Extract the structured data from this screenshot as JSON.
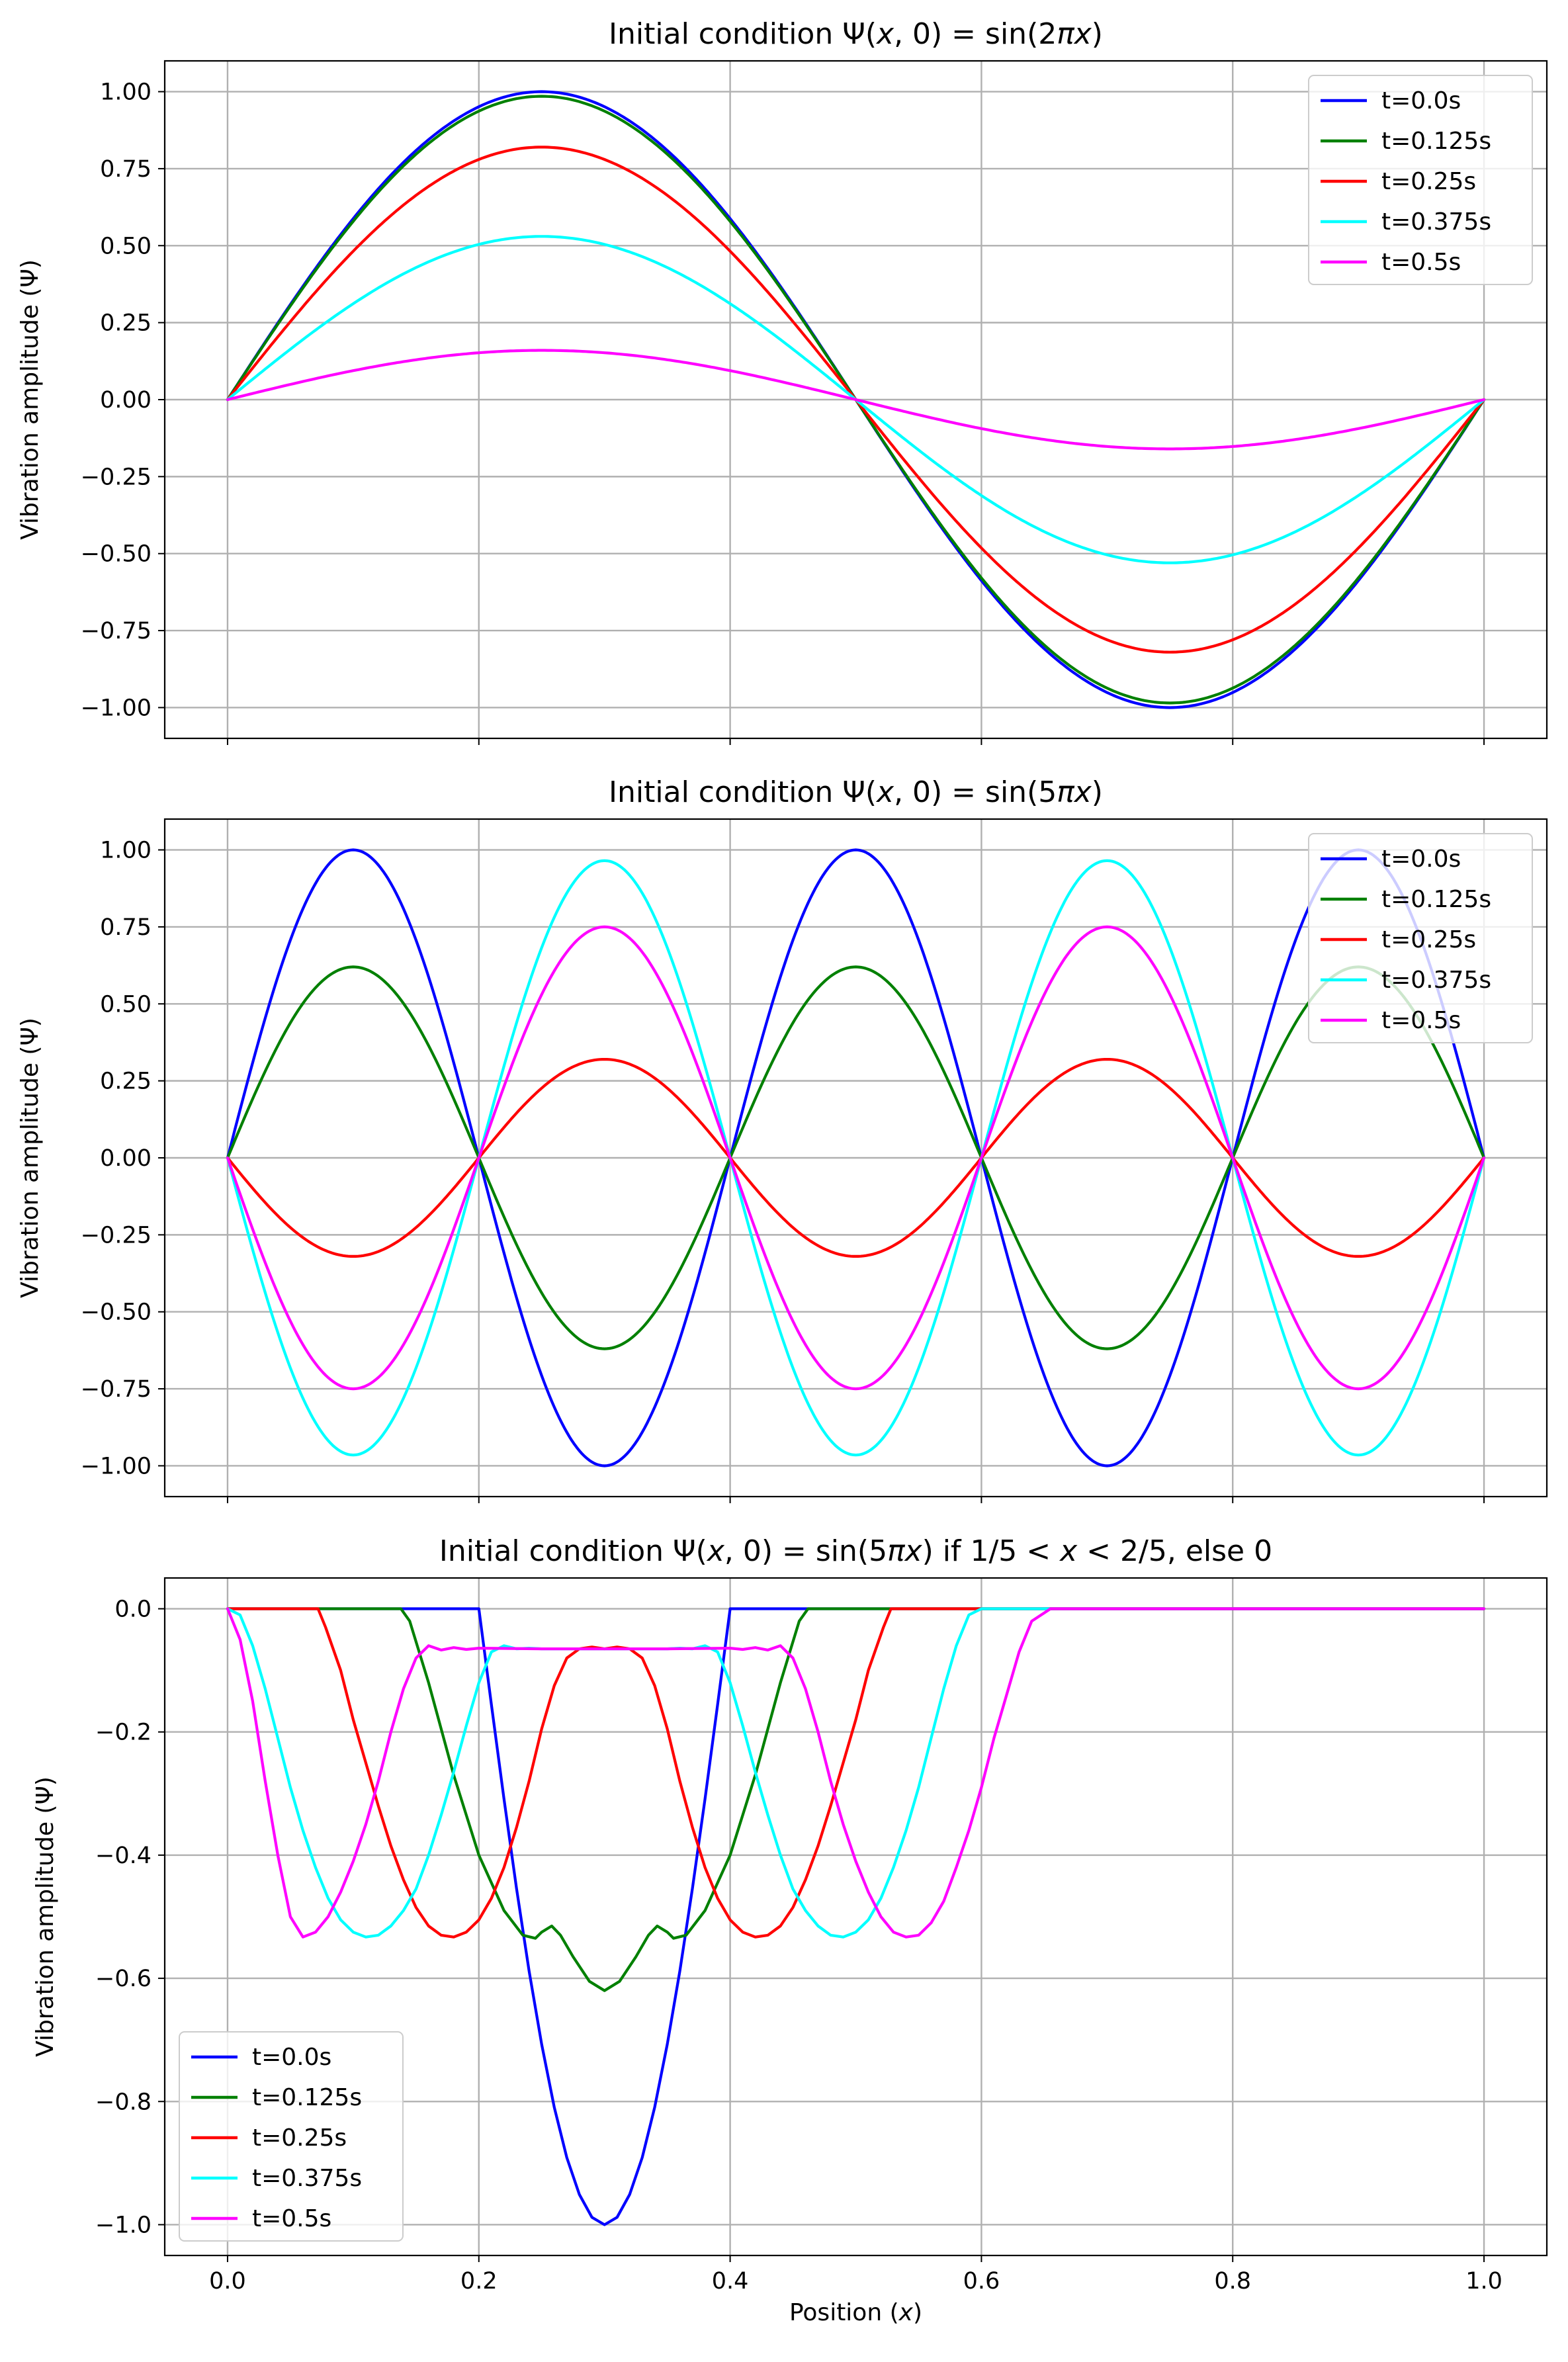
{
  "chart_data": [
    {
      "type": "line",
      "title": "Initial condition Ψ(x, 0) = sin(2πx)",
      "title_parts": {
        "pre": "Initial condition Ψ(",
        "x1": "x",
        "mid": ", 0) = sin(2",
        "pi": "π",
        "x2": "x",
        "post": ")"
      },
      "xlabel": "",
      "ylabel": "Vibration amplitude (Ψ)",
      "xlim": [
        -0.05,
        1.05
      ],
      "ylim": [
        -1.1,
        1.1
      ],
      "xticks": [
        0.0,
        0.2,
        0.4,
        0.6,
        0.8,
        1.0
      ],
      "xtick_labels_visible": false,
      "yticks": [
        1.0,
        0.75,
        0.5,
        0.25,
        0.0,
        -0.25,
        -0.5,
        -0.75,
        -1.0
      ],
      "ytick_labels": [
        "1.00",
        "0.75",
        "0.50",
        "0.25",
        "0.00",
        "−0.25",
        "−0.50",
        "−0.75",
        "−1.00"
      ],
      "grid": true,
      "legend": "top-right",
      "formula": "A * sin(2*pi*x), x in [0, 1]",
      "series": [
        {
          "name": "t=0.0s",
          "color": "#0000ff",
          "amplitude": 1.0
        },
        {
          "name": "t=0.125s",
          "color": "#008000",
          "amplitude": 0.985
        },
        {
          "name": "t=0.25s",
          "color": "#ff0000",
          "amplitude": 0.82
        },
        {
          "name": "t=0.375s",
          "color": "#00ffff",
          "amplitude": 0.53
        },
        {
          "name": "t=0.5s",
          "color": "#ff00ff",
          "amplitude": 0.16
        }
      ]
    },
    {
      "type": "line",
      "title": "Initial condition Ψ(x, 0) = sin(5πx)",
      "title_parts": {
        "pre": "Initial condition Ψ(",
        "x1": "x",
        "mid": ", 0) = sin(5",
        "pi": "π",
        "x2": "x",
        "post": ")"
      },
      "xlabel": "",
      "ylabel": "Vibration amplitude (Ψ)",
      "xlim": [
        -0.05,
        1.05
      ],
      "ylim": [
        -1.1,
        1.1
      ],
      "xticks": [
        0.0,
        0.2,
        0.4,
        0.6,
        0.8,
        1.0
      ],
      "xtick_labels_visible": false,
      "yticks": [
        1.0,
        0.75,
        0.5,
        0.25,
        0.0,
        -0.25,
        -0.5,
        -0.75,
        -1.0
      ],
      "ytick_labels": [
        "1.00",
        "0.75",
        "0.50",
        "0.25",
        "0.00",
        "−0.25",
        "−0.50",
        "−0.75",
        "−1.00"
      ],
      "grid": true,
      "legend": "top-right",
      "formula": "A * |sin(5*pi*x)| alternating sign per half-wave, x in [0, 1]",
      "series": [
        {
          "name": "t=0.0s",
          "color": "#0000ff",
          "amplitude": 1.0
        },
        {
          "name": "t=0.125s",
          "color": "#008000",
          "amplitude": 0.62
        },
        {
          "name": "t=0.25s",
          "color": "#ff0000",
          "amplitude": -0.32
        },
        {
          "name": "t=0.375s",
          "color": "#00ffff",
          "amplitude": -0.965
        },
        {
          "name": "t=0.5s",
          "color": "#ff00ff",
          "amplitude": -0.75
        }
      ]
    },
    {
      "type": "line",
      "title": "Initial condition Ψ(x, 0) = sin(5πx) if 1/5 < x < 2/5, else 0",
      "title_parts": {
        "pre": "Initial condition Ψ(",
        "x1": "x",
        "mid": ", 0) = sin(5",
        "pi": "π",
        "x2": "x",
        "post": ") if 1/5 < ",
        "x3": "x",
        "post2": " < 2/5, else 0"
      },
      "xlabel": "Position (x)",
      "xlabel_parts": {
        "pre": "Position (",
        "x": "x",
        "post": ")"
      },
      "ylabel": "Vibration amplitude (Ψ)",
      "xlim": [
        -0.05,
        1.05
      ],
      "ylim": [
        -1.05,
        0.05
      ],
      "xticks": [
        0.0,
        0.2,
        0.4,
        0.6,
        0.8,
        1.0
      ],
      "xtick_labels": [
        "0.0",
        "0.2",
        "0.4",
        "0.6",
        "0.8",
        "1.0"
      ],
      "xtick_labels_visible": true,
      "yticks": [
        0.0,
        -0.2,
        -0.4,
        -0.6,
        -0.8,
        -1.0
      ],
      "ytick_labels": [
        "0.0",
        "−0.2",
        "−0.4",
        "−0.6",
        "−0.8",
        "−1.0"
      ],
      "grid": true,
      "legend": "bottom-left",
      "series": [
        {
          "name": "t=0.0s",
          "color": "#0000ff",
          "points": [
            [
              0.0,
              0.0
            ],
            [
              0.2,
              0.0
            ],
            [
              0.21,
              -0.156
            ],
            [
              0.22,
              -0.309
            ],
            [
              0.23,
              -0.454
            ],
            [
              0.24,
              -0.588
            ],
            [
              0.25,
              -0.707
            ],
            [
              0.26,
              -0.809
            ],
            [
              0.27,
              -0.891
            ],
            [
              0.28,
              -0.951
            ],
            [
              0.29,
              -0.988
            ],
            [
              0.3,
              -1.0
            ],
            [
              0.31,
              -0.988
            ],
            [
              0.32,
              -0.951
            ],
            [
              0.33,
              -0.891
            ],
            [
              0.34,
              -0.809
            ],
            [
              0.35,
              -0.707
            ],
            [
              0.36,
              -0.588
            ],
            [
              0.37,
              -0.454
            ],
            [
              0.38,
              -0.309
            ],
            [
              0.39,
              -0.156
            ],
            [
              0.4,
              0.0
            ],
            [
              1.0,
              0.0
            ]
          ]
        },
        {
          "name": "t=0.125s",
          "color": "#008000",
          "points": [
            [
              0.0,
              0.0
            ],
            [
              0.138,
              0.0
            ],
            [
              0.145,
              -0.02
            ],
            [
              0.16,
              -0.12
            ],
            [
              0.18,
              -0.27
            ],
            [
              0.2,
              -0.4
            ],
            [
              0.22,
              -0.49
            ],
            [
              0.235,
              -0.53
            ],
            [
              0.245,
              -0.535
            ],
            [
              0.25,
              -0.525
            ],
            [
              0.258,
              -0.515
            ],
            [
              0.265,
              -0.53
            ],
            [
              0.275,
              -0.565
            ],
            [
              0.288,
              -0.605
            ],
            [
              0.3,
              -0.62
            ],
            [
              0.312,
              -0.605
            ],
            [
              0.325,
              -0.565
            ],
            [
              0.335,
              -0.53
            ],
            [
              0.342,
              -0.515
            ],
            [
              0.35,
              -0.525
            ],
            [
              0.355,
              -0.535
            ],
            [
              0.365,
              -0.53
            ],
            [
              0.38,
              -0.49
            ],
            [
              0.4,
              -0.4
            ],
            [
              0.42,
              -0.27
            ],
            [
              0.44,
              -0.12
            ],
            [
              0.455,
              -0.02
            ],
            [
              0.462,
              0.0
            ],
            [
              1.0,
              0.0
            ]
          ]
        },
        {
          "name": "t=0.25s",
          "color": "#ff0000",
          "points": [
            [
              0.0,
              0.0
            ],
            [
              0.072,
              0.0
            ],
            [
              0.078,
              -0.03
            ],
            [
              0.09,
              -0.1
            ],
            [
              0.1,
              -0.18
            ],
            [
              0.11,
              -0.25
            ],
            [
              0.12,
              -0.32
            ],
            [
              0.13,
              -0.385
            ],
            [
              0.14,
              -0.44
            ],
            [
              0.15,
              -0.485
            ],
            [
              0.16,
              -0.515
            ],
            [
              0.17,
              -0.53
            ],
            [
              0.18,
              -0.533
            ],
            [
              0.19,
              -0.525
            ],
            [
              0.2,
              -0.505
            ],
            [
              0.21,
              -0.47
            ],
            [
              0.22,
              -0.42
            ],
            [
              0.23,
              -0.355
            ],
            [
              0.24,
              -0.28
            ],
            [
              0.25,
              -0.195
            ],
            [
              0.26,
              -0.125
            ],
            [
              0.27,
              -0.08
            ],
            [
              0.28,
              -0.065
            ],
            [
              0.29,
              -0.062
            ],
            [
              0.3,
              -0.065
            ],
            [
              0.31,
              -0.062
            ],
            [
              0.32,
              -0.065
            ],
            [
              0.33,
              -0.08
            ],
            [
              0.34,
              -0.125
            ],
            [
              0.35,
              -0.195
            ],
            [
              0.36,
              -0.28
            ],
            [
              0.37,
              -0.355
            ],
            [
              0.38,
              -0.42
            ],
            [
              0.39,
              -0.47
            ],
            [
              0.4,
              -0.505
            ],
            [
              0.41,
              -0.525
            ],
            [
              0.42,
              -0.533
            ],
            [
              0.43,
              -0.53
            ],
            [
              0.44,
              -0.515
            ],
            [
              0.45,
              -0.485
            ],
            [
              0.46,
              -0.44
            ],
            [
              0.47,
              -0.385
            ],
            [
              0.48,
              -0.32
            ],
            [
              0.49,
              -0.25
            ],
            [
              0.5,
              -0.18
            ],
            [
              0.51,
              -0.1
            ],
            [
              0.522,
              -0.03
            ],
            [
              0.528,
              0.0
            ],
            [
              1.0,
              0.0
            ]
          ]
        },
        {
          "name": "t=0.375s",
          "color": "#00ffff",
          "points": [
            [
              0.0,
              0.0
            ],
            [
              0.01,
              -0.01
            ],
            [
              0.02,
              -0.06
            ],
            [
              0.03,
              -0.13
            ],
            [
              0.04,
              -0.21
            ],
            [
              0.05,
              -0.29
            ],
            [
              0.06,
              -0.36
            ],
            [
              0.07,
              -0.42
            ],
            [
              0.08,
              -0.47
            ],
            [
              0.09,
              -0.505
            ],
            [
              0.1,
              -0.525
            ],
            [
              0.11,
              -0.533
            ],
            [
              0.12,
              -0.53
            ],
            [
              0.13,
              -0.515
            ],
            [
              0.14,
              -0.49
            ],
            [
              0.15,
              -0.455
            ],
            [
              0.16,
              -0.4
            ],
            [
              0.17,
              -0.335
            ],
            [
              0.18,
              -0.265
            ],
            [
              0.19,
              -0.19
            ],
            [
              0.2,
              -0.12
            ],
            [
              0.21,
              -0.07
            ],
            [
              0.22,
              -0.06
            ],
            [
              0.23,
              -0.065
            ],
            [
              0.24,
              -0.064
            ],
            [
              0.25,
              -0.065
            ],
            [
              0.3,
              -0.065
            ],
            [
              0.35,
              -0.065
            ],
            [
              0.36,
              -0.064
            ],
            [
              0.37,
              -0.065
            ],
            [
              0.38,
              -0.06
            ],
            [
              0.39,
              -0.07
            ],
            [
              0.4,
              -0.12
            ],
            [
              0.41,
              -0.19
            ],
            [
              0.42,
              -0.265
            ],
            [
              0.43,
              -0.335
            ],
            [
              0.44,
              -0.4
            ],
            [
              0.45,
              -0.455
            ],
            [
              0.46,
              -0.49
            ],
            [
              0.47,
              -0.515
            ],
            [
              0.48,
              -0.53
            ],
            [
              0.49,
              -0.533
            ],
            [
              0.5,
              -0.525
            ],
            [
              0.51,
              -0.505
            ],
            [
              0.52,
              -0.47
            ],
            [
              0.53,
              -0.42
            ],
            [
              0.54,
              -0.36
            ],
            [
              0.55,
              -0.29
            ],
            [
              0.56,
              -0.21
            ],
            [
              0.57,
              -0.13
            ],
            [
              0.58,
              -0.06
            ],
            [
              0.59,
              -0.01
            ],
            [
              0.6,
              0.0
            ],
            [
              1.0,
              0.0
            ]
          ]
        },
        {
          "name": "t=0.5s",
          "color": "#ff00ff",
          "points": [
            [
              0.0,
              0.0
            ],
            [
              0.01,
              -0.05
            ],
            [
              0.02,
              -0.15
            ],
            [
              0.03,
              -0.28
            ],
            [
              0.04,
              -0.4
            ],
            [
              0.05,
              -0.5
            ],
            [
              0.06,
              -0.533
            ],
            [
              0.07,
              -0.525
            ],
            [
              0.08,
              -0.5
            ],
            [
              0.09,
              -0.46
            ],
            [
              0.1,
              -0.41
            ],
            [
              0.11,
              -0.35
            ],
            [
              0.12,
              -0.28
            ],
            [
              0.13,
              -0.2
            ],
            [
              0.14,
              -0.13
            ],
            [
              0.15,
              -0.08
            ],
            [
              0.16,
              -0.06
            ],
            [
              0.17,
              -0.067
            ],
            [
              0.18,
              -0.063
            ],
            [
              0.19,
              -0.066
            ],
            [
              0.2,
              -0.064
            ],
            [
              0.25,
              -0.065
            ],
            [
              0.3,
              -0.065
            ],
            [
              0.35,
              -0.065
            ],
            [
              0.4,
              -0.064
            ],
            [
              0.41,
              -0.066
            ],
            [
              0.42,
              -0.063
            ],
            [
              0.43,
              -0.067
            ],
            [
              0.44,
              -0.06
            ],
            [
              0.45,
              -0.08
            ],
            [
              0.46,
              -0.13
            ],
            [
              0.47,
              -0.2
            ],
            [
              0.48,
              -0.28
            ],
            [
              0.49,
              -0.35
            ],
            [
              0.5,
              -0.41
            ],
            [
              0.51,
              -0.46
            ],
            [
              0.52,
              -0.5
            ],
            [
              0.53,
              -0.525
            ],
            [
              0.54,
              -0.533
            ],
            [
              0.55,
              -0.53
            ],
            [
              0.56,
              -0.51
            ],
            [
              0.57,
              -0.475
            ],
            [
              0.58,
              -0.42
            ],
            [
              0.59,
              -0.36
            ],
            [
              0.6,
              -0.29
            ],
            [
              0.61,
              -0.21
            ],
            [
              0.62,
              -0.14
            ],
            [
              0.63,
              -0.07
            ],
            [
              0.64,
              -0.02
            ],
            [
              0.655,
              0.0
            ],
            [
              1.0,
              0.0
            ]
          ]
        }
      ]
    }
  ]
}
